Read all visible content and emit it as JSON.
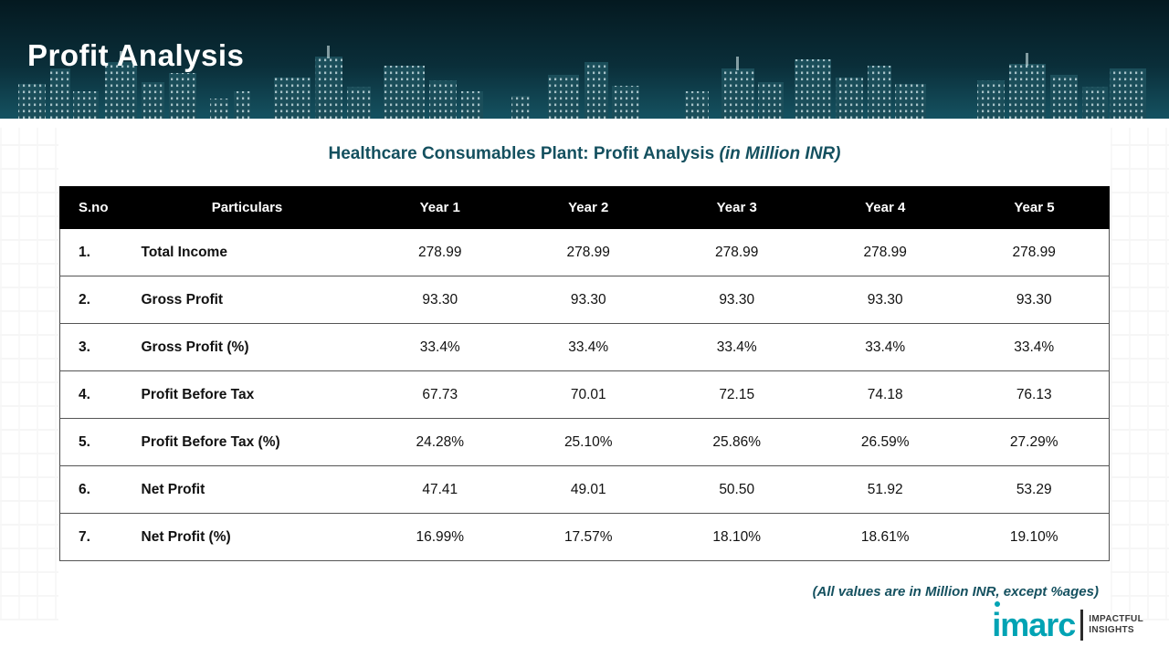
{
  "header": {
    "title": "Profit Analysis"
  },
  "subtitle": {
    "main": "Healthcare Consumables Plant: Profit Analysis ",
    "suffix": "(in Million INR)"
  },
  "table": {
    "columns": [
      "S.no",
      "Particulars",
      "Year 1",
      "Year 2",
      "Year 3",
      "Year 4",
      "Year 5"
    ],
    "rows": [
      {
        "sno": "1.",
        "particulars": "Total Income",
        "values": [
          "278.99",
          "278.99",
          "278.99",
          "278.99",
          "278.99"
        ]
      },
      {
        "sno": "2.",
        "particulars": "Gross Profit",
        "values": [
          "93.30",
          "93.30",
          "93.30",
          "93.30",
          "93.30"
        ]
      },
      {
        "sno": "3.",
        "particulars": "Gross Profit (%)",
        "values": [
          "33.4%",
          "33.4%",
          "33.4%",
          "33.4%",
          "33.4%"
        ]
      },
      {
        "sno": "4.",
        "particulars": "Profit Before Tax",
        "values": [
          "67.73",
          "70.01",
          "72.15",
          "74.18",
          "76.13"
        ]
      },
      {
        "sno": "5.",
        "particulars": "Profit Before Tax (%)",
        "values": [
          "24.28%",
          "25.10%",
          "25.86%",
          "26.59%",
          "27.29%"
        ]
      },
      {
        "sno": "6.",
        "particulars": "Net Profit",
        "values": [
          "47.41",
          "49.01",
          "50.50",
          "51.92",
          "53.29"
        ]
      },
      {
        "sno": "7.",
        "particulars": "Net Profit (%)",
        "values": [
          "16.99%",
          "17.57%",
          "18.10%",
          "18.61%",
          "19.10%"
        ]
      }
    ]
  },
  "chart_data": {
    "type": "table",
    "title": "Healthcare Consumables Plant: Profit Analysis (in Million INR)",
    "categories": [
      "Year 1",
      "Year 2",
      "Year 3",
      "Year 4",
      "Year 5"
    ],
    "series": [
      {
        "name": "Total Income",
        "values": [
          278.99,
          278.99,
          278.99,
          278.99,
          278.99
        ]
      },
      {
        "name": "Gross Profit",
        "values": [
          93.3,
          93.3,
          93.3,
          93.3,
          93.3
        ]
      },
      {
        "name": "Gross Profit (%)",
        "values": [
          33.4,
          33.4,
          33.4,
          33.4,
          33.4
        ]
      },
      {
        "name": "Profit Before Tax",
        "values": [
          67.73,
          70.01,
          72.15,
          74.18,
          76.13
        ]
      },
      {
        "name": "Profit Before Tax (%)",
        "values": [
          24.28,
          25.1,
          25.86,
          26.59,
          27.29
        ]
      },
      {
        "name": "Net Profit",
        "values": [
          47.41,
          49.01,
          50.5,
          51.92,
          53.29
        ]
      },
      {
        "name": "Net Profit (%)",
        "values": [
          16.99,
          17.57,
          18.1,
          18.61,
          19.1
        ]
      }
    ]
  },
  "footnote": {
    "text": "(All values are in Million INR, except %ages)"
  },
  "logo": {
    "name": "imarc",
    "tagline1": "IMPACTFUL",
    "tagline2": "INSIGHTS"
  },
  "colors": {
    "header_band": "#0a2e39",
    "accent_teal": "#00a3b4",
    "subtitle_text": "#14505f",
    "table_header_bg": "#000000",
    "table_header_text": "#ffffff"
  }
}
